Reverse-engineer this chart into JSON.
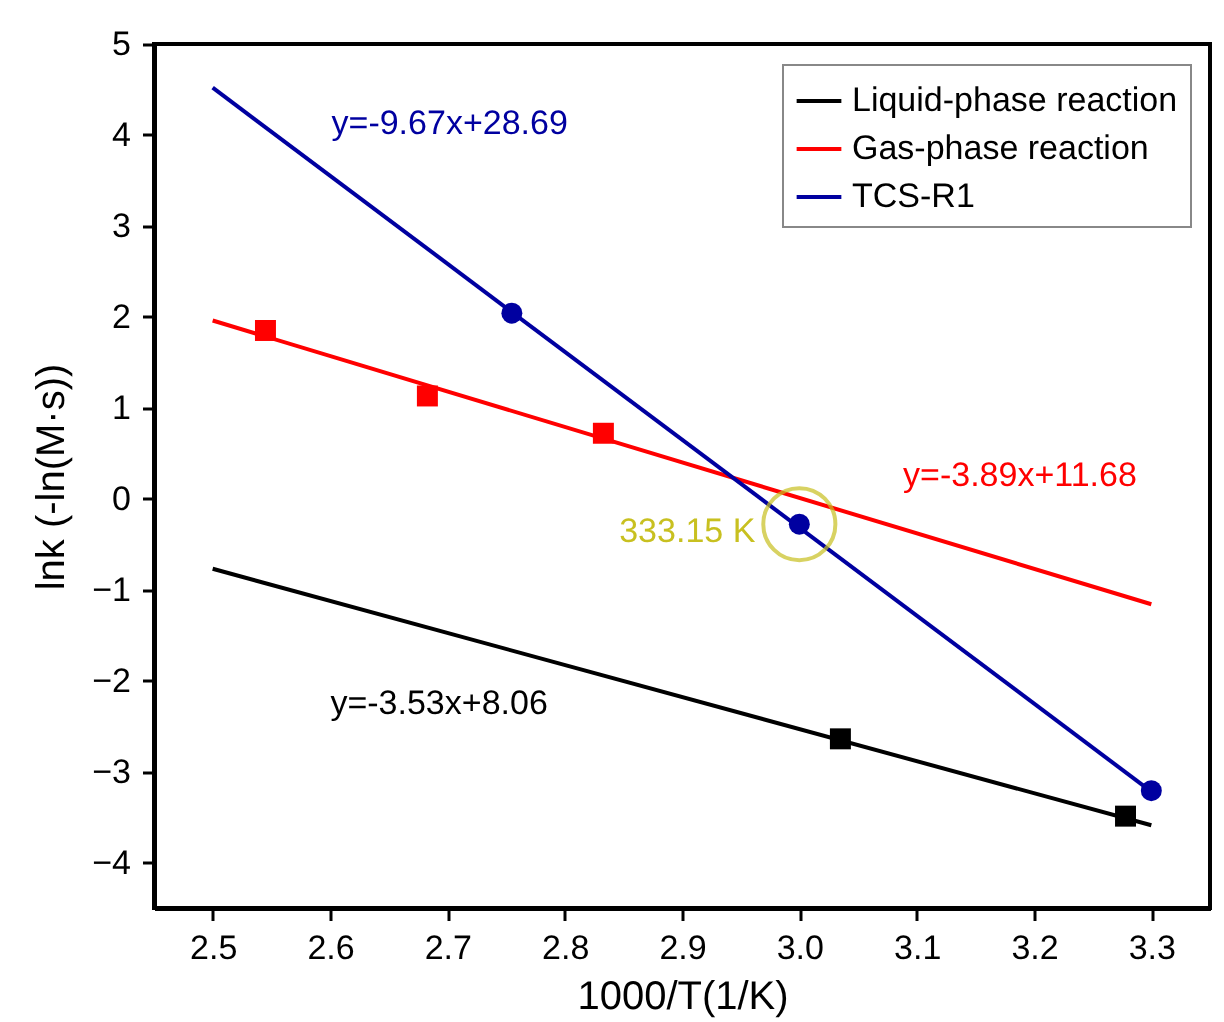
{
  "chart_data": {
    "type": "scatter",
    "xlabel": "1000/T(1/K)",
    "ylabel": "lnk (-ln(M·s))",
    "xlim": [
      2.45,
      3.35
    ],
    "ylim": [
      -4.5,
      5
    ],
    "xticks": [
      2.5,
      2.6,
      2.7,
      2.8,
      2.9,
      {
        "value": 3,
        "label": "3.0"
      },
      3.1,
      3.2,
      3.3
    ],
    "yticks": [
      {
        "value": -4,
        "label": "−4"
      },
      {
        "value": -3,
        "label": "−3"
      },
      {
        "value": -2,
        "label": "−2"
      },
      {
        "value": -1,
        "label": "−1"
      },
      0,
      1,
      2,
      3,
      4,
      5
    ],
    "grid": false,
    "legend": "top right",
    "series": [
      {
        "name": "Liquid-phase reaction",
        "type": "line",
        "color": "#000000",
        "x": [
          2.5,
          3.3
        ],
        "values": [
          -0.77,
          -3.59
        ]
      },
      {
        "name": "Gas-phase reaction",
        "type": "line",
        "color": "#ff0000",
        "x": [
          2.5,
          3.3
        ],
        "values": [
          1.96,
          -1.16
        ]
      },
      {
        "name": "TCS-R1",
        "type": "line",
        "color": "#0000a0",
        "x": [
          2.5,
          3.3
        ],
        "values": [
          4.52,
          -3.22
        ]
      },
      {
        "color": "#000000",
        "marker": "square",
        "x": [
          3.035,
          3.278
        ],
        "values": [
          -2.64,
          -3.49
        ]
      },
      {
        "color": "#ff0000",
        "marker": "square",
        "x": [
          2.545,
          2.683,
          2.833
        ],
        "values": [
          1.85,
          1.13,
          0.72
        ]
      },
      {
        "color": "#0000a0",
        "marker": "circle",
        "x": [
          2.755,
          3.0,
          3.3
        ],
        "values": [
          2.04,
          -0.28,
          -3.21
        ]
      }
    ],
    "annotations": [
      "y=-9.67x+28.69",
      "y=-3.89x+11.68",
      "y=-3.53x+8.06",
      {
        "text": "333.15 K",
        "x": 3.0,
        "y": -0.28
      }
    ]
  }
}
